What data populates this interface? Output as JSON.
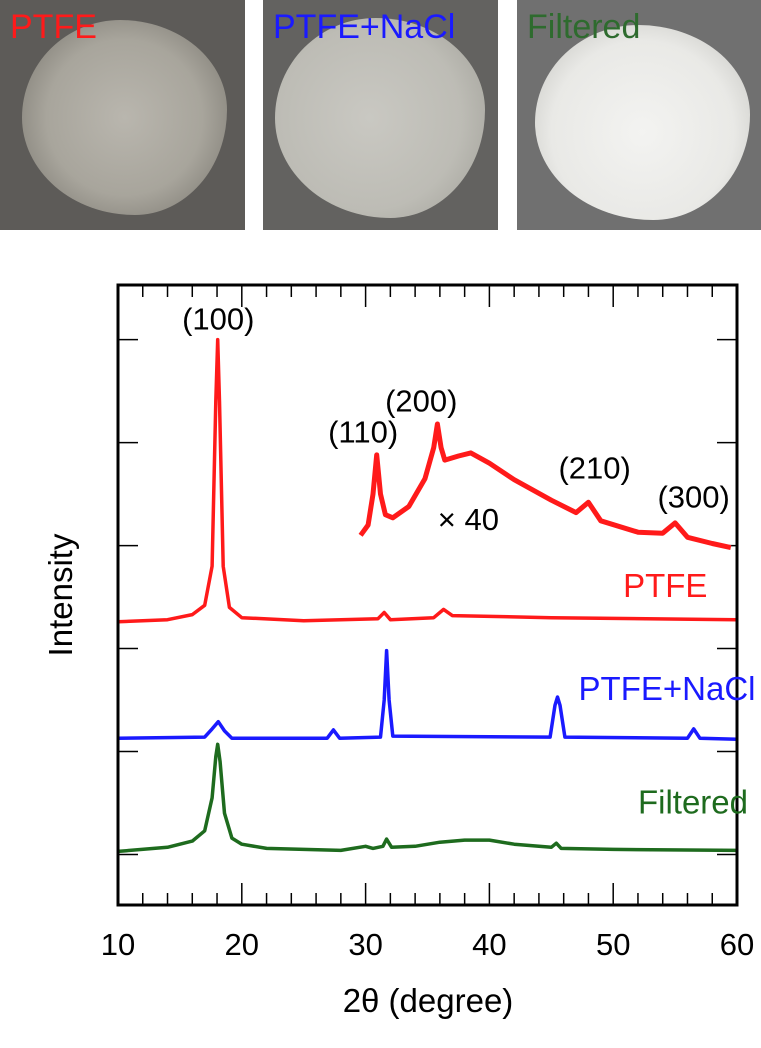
{
  "photos": [
    {
      "label": "PTFE",
      "color": "#ff1a1a"
    },
    {
      "label": "PTFE+NaCl",
      "color": "#1a1aff"
    },
    {
      "label": "Filtered",
      "color": "#2e6b2e"
    }
  ],
  "chart_data": {
    "type": "line",
    "xlabel": "2θ (degree)",
    "ylabel": "Intensity",
    "xlim": [
      10,
      60
    ],
    "ylim": [
      -0.49,
      5.53
    ],
    "xticks": [
      10,
      20,
      30,
      40,
      50,
      60
    ],
    "yticks": [
      0,
      1,
      2,
      3,
      4,
      5
    ],
    "y_tick_labels_shown": false,
    "series": [
      {
        "name": "PTFE",
        "color": "#ff1a1a",
        "label_at": [
          50.8,
          2.5
        ],
        "points": [
          [
            10,
            2.26
          ],
          [
            14,
            2.28
          ],
          [
            16,
            2.33
          ],
          [
            17,
            2.42
          ],
          [
            17.6,
            2.8
          ],
          [
            17.9,
            4.4
          ],
          [
            18.05,
            5.0
          ],
          [
            18.2,
            4.4
          ],
          [
            18.5,
            2.8
          ],
          [
            19,
            2.4
          ],
          [
            20,
            2.3
          ],
          [
            25,
            2.27
          ],
          [
            31,
            2.29
          ],
          [
            31.5,
            2.35
          ],
          [
            32,
            2.28
          ],
          [
            35.5,
            2.3
          ],
          [
            36.3,
            2.38
          ],
          [
            37,
            2.32
          ],
          [
            45,
            2.3
          ],
          [
            60,
            2.28
          ]
        ]
      },
      {
        "name": "×40",
        "color": "#ff1a1a",
        "scaled": true,
        "points": [
          [
            29.6,
            3.1
          ],
          [
            30.2,
            3.2
          ],
          [
            30.6,
            3.5
          ],
          [
            30.9,
            3.88
          ],
          [
            31.2,
            3.5
          ],
          [
            31.6,
            3.3
          ],
          [
            32.2,
            3.27
          ],
          [
            33.5,
            3.38
          ],
          [
            34.8,
            3.65
          ],
          [
            35.5,
            3.95
          ],
          [
            35.8,
            4.18
          ],
          [
            36.1,
            3.95
          ],
          [
            36.4,
            3.83
          ],
          [
            37.5,
            3.87
          ],
          [
            38.5,
            3.9
          ],
          [
            40,
            3.8
          ],
          [
            42,
            3.64
          ],
          [
            45,
            3.44
          ],
          [
            47,
            3.32
          ],
          [
            48,
            3.42
          ],
          [
            49,
            3.24
          ],
          [
            52,
            3.13
          ],
          [
            54,
            3.12
          ],
          [
            55,
            3.22
          ],
          [
            56,
            3.08
          ],
          [
            58,
            3.02
          ],
          [
            59.5,
            2.98
          ]
        ]
      },
      {
        "name": "PTFE+NaCl",
        "color": "#1a1aff",
        "label_at": [
          47.2,
          1.5
        ],
        "points": [
          [
            10,
            1.13
          ],
          [
            17,
            1.14
          ],
          [
            17.6,
            1.22
          ],
          [
            18.1,
            1.29
          ],
          [
            18.6,
            1.2
          ],
          [
            19.2,
            1.13
          ],
          [
            26.9,
            1.13
          ],
          [
            27.4,
            1.21
          ],
          [
            27.9,
            1.13
          ],
          [
            31.2,
            1.14
          ],
          [
            31.5,
            1.5
          ],
          [
            31.7,
            1.98
          ],
          [
            31.9,
            1.5
          ],
          [
            32.2,
            1.15
          ],
          [
            44.9,
            1.14
          ],
          [
            45.3,
            1.45
          ],
          [
            45.5,
            1.53
          ],
          [
            45.7,
            1.45
          ],
          [
            46.1,
            1.14
          ],
          [
            56,
            1.13
          ],
          [
            56.5,
            1.22
          ],
          [
            57,
            1.13
          ],
          [
            60,
            1.12
          ]
        ]
      },
      {
        "name": "Filtered",
        "color": "#1e6b1e",
        "label_at": [
          52,
          0.4
        ],
        "points": [
          [
            10,
            0.03
          ],
          [
            14,
            0.07
          ],
          [
            16,
            0.13
          ],
          [
            17,
            0.23
          ],
          [
            17.6,
            0.55
          ],
          [
            17.9,
            0.95
          ],
          [
            18.05,
            1.07
          ],
          [
            18.25,
            0.9
          ],
          [
            18.6,
            0.4
          ],
          [
            19.2,
            0.16
          ],
          [
            20,
            0.1
          ],
          [
            22,
            0.06
          ],
          [
            28,
            0.04
          ],
          [
            30,
            0.08
          ],
          [
            30.6,
            0.06
          ],
          [
            31.4,
            0.08
          ],
          [
            31.7,
            0.15
          ],
          [
            32.1,
            0.07
          ],
          [
            34,
            0.08
          ],
          [
            36,
            0.12
          ],
          [
            38,
            0.14
          ],
          [
            40,
            0.14
          ],
          [
            42,
            0.1
          ],
          [
            45,
            0.07
          ],
          [
            45.4,
            0.11
          ],
          [
            45.8,
            0.06
          ],
          [
            50,
            0.05
          ],
          [
            60,
            0.04
          ]
        ]
      }
    ],
    "annotations": [
      {
        "text": "(100)",
        "x": 18.1,
        "y": 5.1
      },
      {
        "text": "(110)",
        "x": 29.8,
        "y": 4.0
      },
      {
        "text": "(200)",
        "x": 34.5,
        "y": 4.3
      },
      {
        "text": "(210)",
        "x": 48.5,
        "y": 3.65
      },
      {
        "text": "(300)",
        "x": 56.5,
        "y": 3.37
      },
      {
        "text": "× 40",
        "x": 38.3,
        "y": 3.15
      }
    ]
  }
}
